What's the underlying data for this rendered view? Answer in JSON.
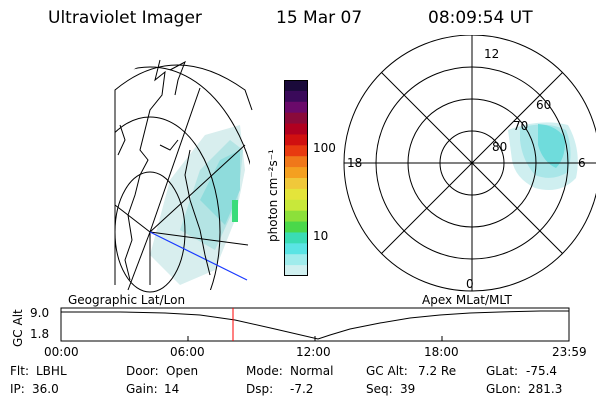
{
  "header": {
    "instrument": "Ultraviolet Imager",
    "date": "15 Mar 07",
    "time": "08:09:54 UT"
  },
  "colorbar": {
    "unit_label": "photon cm⁻²s⁻¹",
    "ticks": [
      "100",
      "10"
    ],
    "colors_top_to_bottom": [
      "#1a0a3a",
      "#3a0a5a",
      "#6a0a6a",
      "#8a0a3a",
      "#b00020",
      "#d01010",
      "#e83a10",
      "#f0781a",
      "#f4a020",
      "#f0c83a",
      "#e4e43a",
      "#c8e83a",
      "#8ce03a",
      "#4ad84a",
      "#3adcb4",
      "#5ae4e4",
      "#a0ecec",
      "#d0f0f0"
    ]
  },
  "map_labels": {
    "geographic": "Geographic Lat/Lon",
    "apex": "Apex MLat/MLT"
  },
  "polar": {
    "mlt_labels": {
      "top": "12",
      "right": "6",
      "bottom": "0",
      "left": "18"
    },
    "lat_labels": [
      "80",
      "70",
      "60"
    ]
  },
  "timeline": {
    "ylabel": "GC Alt",
    "yticks": [
      "9.0",
      "1.8"
    ],
    "xticks": [
      "00:00",
      "06:00",
      "12:00",
      "18:00",
      "23:59"
    ],
    "marker_time": "08:09:54",
    "marker_color": "#ff0000"
  },
  "status": {
    "row1": [
      {
        "label": "Flt:",
        "value": "LBHL"
      },
      {
        "label": "Door:",
        "value": "Open"
      },
      {
        "label": "Mode:",
        "value": "Normal"
      },
      {
        "label": "GC Alt:",
        "value": "7.2 Re"
      },
      {
        "label": "GLat:",
        "value": "-75.4"
      }
    ],
    "row2": [
      {
        "label": "IP:",
        "value": "36.0"
      },
      {
        "label": "Gain:",
        "value": "14"
      },
      {
        "label": "Dsp:",
        "value": "-7.2"
      },
      {
        "label": "Seq:",
        "value": "39"
      },
      {
        "label": "GLon:",
        "value": "281.3"
      }
    ]
  }
}
